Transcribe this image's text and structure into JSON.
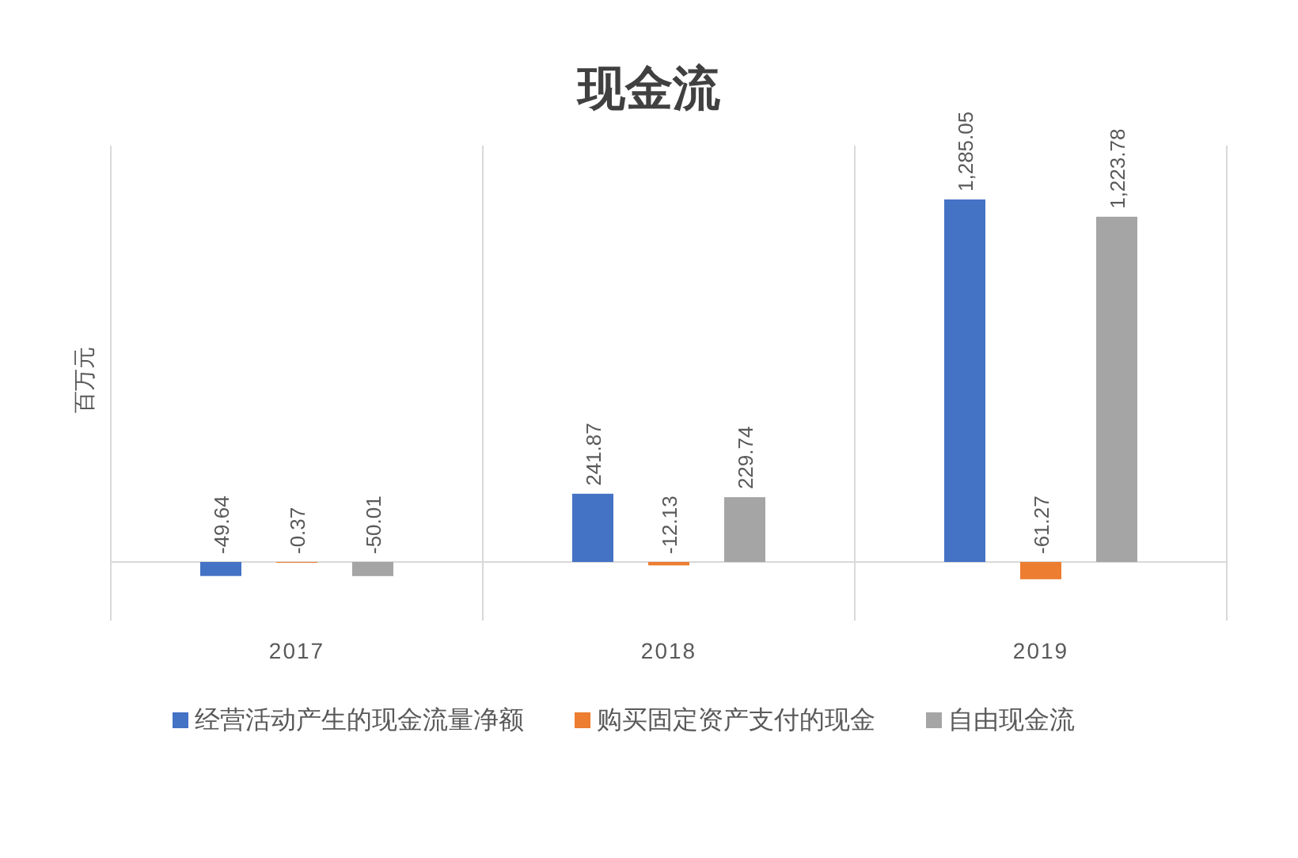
{
  "chart_data": {
    "type": "bar",
    "title": "现金流",
    "ylabel": "百万元",
    "categories": [
      "2017",
      "2018",
      "2019"
    ],
    "series": [
      {
        "name": "经营活动产生的现金流量净额",
        "color": "#4472c4",
        "values": [
          -49.64,
          241.87,
          1285.05
        ],
        "value_labels": [
          "-49.64",
          "241.87",
          "1,285.05"
        ]
      },
      {
        "name": "购买固定资产支付的现金",
        "color": "#ed7d31",
        "values": [
          -0.37,
          -12.13,
          -61.27
        ],
        "value_labels": [
          "-0.37",
          "-12.13",
          "-61.27"
        ]
      },
      {
        "name": "自由现金流",
        "color": "#a5a5a5",
        "values": [
          -50.01,
          229.74,
          1223.78
        ],
        "value_labels": [
          "-50.01",
          "229.74",
          "1,223.78"
        ]
      }
    ],
    "legend": "bottom"
  }
}
